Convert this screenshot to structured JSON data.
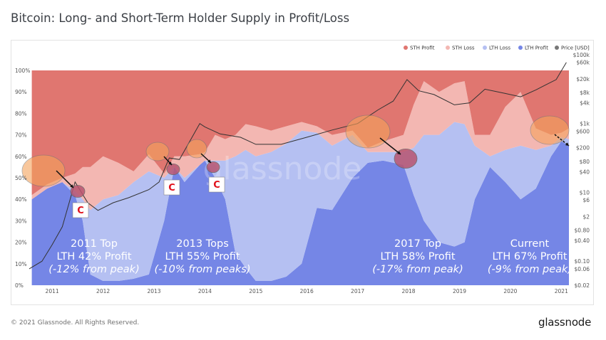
{
  "title": "Bitcoin: Long- and Short-Term Holder Supply in Profit/Loss",
  "footer": {
    "copyright": "© 2021 Glassnode. All Rights Reserved.",
    "brand": "glassnode"
  },
  "watermark": "glassnode",
  "colors": {
    "sth_profit": "#e07670",
    "sth_loss": "#f3b7b2",
    "lth_loss": "#b5c0f2",
    "lth_profit": "#7586e6",
    "price": "#333333",
    "highlight": "#f5a35c",
    "marker": "#b85570"
  },
  "chart_data": {
    "type": "area",
    "stacked": true,
    "x_ticks": [
      "2011",
      "2012",
      "2013",
      "2014",
      "2015",
      "2016",
      "2017",
      "2018",
      "2019",
      "2020",
      "2021"
    ],
    "y_left_ticks": [
      "0%",
      "10%",
      "20%",
      "30%",
      "40%",
      "50%",
      "60%",
      "70%",
      "80%",
      "90%",
      "100%"
    ],
    "y_right_ticks": [
      "$0.02",
      "$0.06",
      "$0.10",
      "$0.40",
      "$0.80",
      "$2",
      "$6",
      "$10",
      "$40",
      "$80",
      "$200",
      "$600",
      "$1k",
      "$4k",
      "$8k",
      "$20k",
      "$60k",
      "$100k"
    ],
    "y_right_scale": "log",
    "legend_position": "top-right",
    "legend": [
      "STH Profit",
      "STH Loss",
      "LTH Loss",
      "LTH Profit",
      "Price [USD]"
    ],
    "x": [
      2010.6,
      2010.9,
      2011.2,
      2011.45,
      2011.6,
      2011.75,
      2012.0,
      2012.3,
      2012.6,
      2012.9,
      2013.2,
      2013.4,
      2013.6,
      2013.9,
      2014.0,
      2014.2,
      2014.4,
      2014.6,
      2014.8,
      2015.0,
      2015.3,
      2015.6,
      2015.9,
      2016.2,
      2016.5,
      2016.9,
      2017.2,
      2017.5,
      2017.9,
      2018.1,
      2018.3,
      2018.6,
      2018.9,
      2019.1,
      2019.3,
      2019.6,
      2019.9,
      2020.2,
      2020.5,
      2020.8,
      2021.0,
      2021.15
    ],
    "series": [
      {
        "name": "LTH Profit",
        "values": [
          40,
          45,
          48,
          42,
          30,
          5,
          2,
          2,
          3,
          5,
          30,
          55,
          48,
          56,
          58,
          50,
          40,
          15,
          8,
          2,
          2,
          4,
          10,
          36,
          35,
          50,
          57,
          58,
          56,
          42,
          30,
          20,
          18,
          20,
          40,
          55,
          48,
          40,
          45,
          60,
          67,
          65
        ]
      },
      {
        "name": "LTH Loss",
        "values": [
          0,
          0,
          0,
          2,
          10,
          30,
          38,
          40,
          45,
          48,
          20,
          0,
          2,
          0,
          0,
          8,
          18,
          45,
          55,
          58,
          60,
          62,
          62,
          35,
          30,
          20,
          5,
          4,
          6,
          22,
          40,
          50,
          58,
          55,
          25,
          5,
          15,
          25,
          18,
          5,
          2,
          3
        ]
      },
      {
        "name": "STH Loss",
        "values": [
          2,
          2,
          2,
          8,
          15,
          20,
          20,
          15,
          5,
          8,
          2,
          5,
          10,
          5,
          4,
          12,
          10,
          10,
          12,
          14,
          10,
          8,
          4,
          3,
          5,
          2,
          2,
          5,
          8,
          20,
          25,
          20,
          18,
          20,
          5,
          10,
          20,
          25,
          10,
          5,
          2,
          5
        ]
      },
      {
        "name": "STH Profit",
        "values": [
          58,
          53,
          50,
          48,
          45,
          45,
          40,
          43,
          47,
          39,
          48,
          40,
          40,
          39,
          38,
          30,
          32,
          30,
          25,
          26,
          28,
          26,
          24,
          26,
          30,
          28,
          36,
          33,
          30,
          16,
          5,
          10,
          6,
          5,
          30,
          30,
          17,
          10,
          27,
          30,
          29,
          27
        ]
      }
    ],
    "price": {
      "name": "Price [USD]",
      "x": [
        2010.55,
        2010.8,
        2011.0,
        2011.2,
        2011.45,
        2011.7,
        2011.9,
        2012.2,
        2012.5,
        2012.9,
        2013.1,
        2013.3,
        2013.5,
        2013.9,
        2014.0,
        2014.3,
        2014.7,
        2015.0,
        2015.5,
        2016.0,
        2016.5,
        2017.0,
        2017.4,
        2017.7,
        2017.97,
        2018.2,
        2018.5,
        2018.9,
        2019.2,
        2019.5,
        2019.9,
        2020.2,
        2020.5,
        2020.9,
        2021.1
      ],
      "values": [
        0.06,
        0.1,
        0.3,
        1,
        20,
        5,
        3,
        5,
        7,
        12,
        20,
        100,
        90,
        1000,
        800,
        500,
        400,
        250,
        250,
        400,
        650,
        1000,
        2500,
        4500,
        19000,
        9000,
        7000,
        3500,
        4000,
        10000,
        7500,
        6000,
        9500,
        19000,
        60000
      ]
    },
    "annotations": [
      {
        "line1": "2011 Top",
        "line2": "LTH 42% Profit",
        "line3": "(-12% from peak)",
        "marker": "C"
      },
      {
        "line1": "2013 Tops",
        "line2": "LTH 55% Profit",
        "line3": "(-10% from peaks)",
        "marker": "C"
      },
      {
        "line1": "2017 Top",
        "line2": "LTH 58% Profit",
        "line3": "(-17% from peak)",
        "marker": "C"
      },
      {
        "line1": "Current",
        "line2": "LTH 67% Profit",
        "line3": "(-9% from peak)"
      }
    ]
  }
}
